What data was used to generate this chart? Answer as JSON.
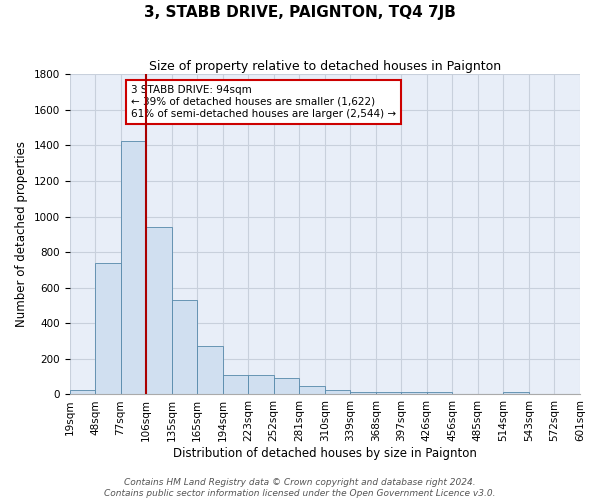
{
  "title": "3, STABB DRIVE, PAIGNTON, TQ4 7JB",
  "subtitle": "Size of property relative to detached houses in Paignton",
  "xlabel": "Distribution of detached houses by size in Paignton",
  "ylabel": "Number of detached properties",
  "bins": [
    "19sqm",
    "48sqm",
    "77sqm",
    "106sqm",
    "135sqm",
    "165sqm",
    "194sqm",
    "223sqm",
    "252sqm",
    "281sqm",
    "310sqm",
    "339sqm",
    "368sqm",
    "397sqm",
    "426sqm",
    "456sqm",
    "485sqm",
    "514sqm",
    "543sqm",
    "572sqm",
    "601sqm"
  ],
  "values": [
    25,
    740,
    1425,
    940,
    530,
    270,
    110,
    110,
    95,
    45,
    25,
    15,
    15,
    15,
    15,
    0,
    0,
    15,
    0,
    0
  ],
  "bar_color": "#d0dff0",
  "bar_edge_color": "#5588aa",
  "marker_line_color": "#aa0000",
  "marker_bin_index": 2,
  "annotation_text": "3 STABB DRIVE: 94sqm\n← 39% of detached houses are smaller (1,622)\n61% of semi-detached houses are larger (2,544) →",
  "annotation_box_color": "white",
  "annotation_box_edge": "#cc0000",
  "ylim": [
    0,
    1800
  ],
  "yticks": [
    0,
    200,
    400,
    600,
    800,
    1000,
    1200,
    1400,
    1600,
    1800
  ],
  "bg_color": "#e8eef8",
  "grid_color": "#c8d0dc",
  "footer_text": "Contains HM Land Registry data © Crown copyright and database right 2024.\nContains public sector information licensed under the Open Government Licence v3.0.",
  "title_fontsize": 11,
  "subtitle_fontsize": 9,
  "xlabel_fontsize": 8.5,
  "ylabel_fontsize": 8.5,
  "tick_fontsize": 7.5,
  "footer_fontsize": 6.5
}
